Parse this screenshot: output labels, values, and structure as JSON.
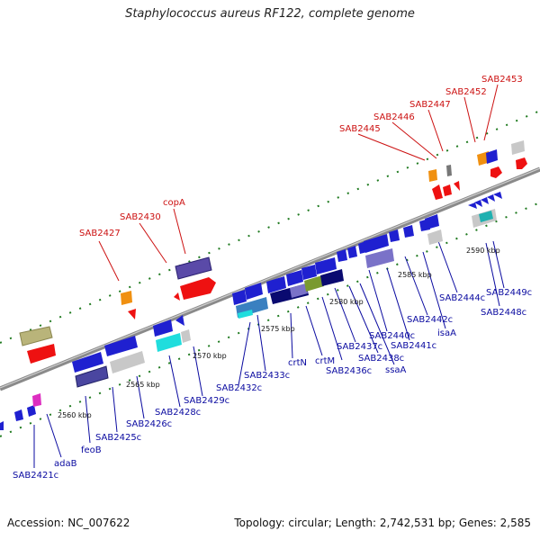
{
  "title": "Staphylococcus aureus RF122, complete genome",
  "accession": "Accession: NC_007622",
  "topology": "Topology: circular; Length: 2,742,531 bp; Genes: 2,585",
  "colors": {
    "backbone": "#8a8a8a",
    "label_blue": "#0a0aa0",
    "label_red": "#cc1111",
    "dots": "#1f7a1f"
  },
  "kbp_ticks": [
    "2560 kbp",
    "2565 kbp",
    "2570 kbp",
    "2575 kbp",
    "2580 kbp",
    "2585 kbp",
    "2590 kbp"
  ],
  "labels_blue": [
    "SAB2421c",
    "adaB",
    "feoB",
    "SAB2425c",
    "SAB2426c",
    "SAB2428c",
    "SAB2429c",
    "SAB2432c",
    "SAB2433c",
    "crtN",
    "crtM",
    "SAB2436c",
    "SAB2437c",
    "SAB2438c",
    "ssaA",
    "SAB2440c",
    "SAB2441c",
    "SAB2442c",
    "isaA",
    "SAB2444c",
    "SAB2448c",
    "SAB2449c"
  ],
  "labels_red": [
    "SAB2427",
    "SAB2430",
    "copA",
    "SAB2445",
    "SAB2446",
    "SAB2447",
    "SAB2452",
    "SAB2453"
  ]
}
